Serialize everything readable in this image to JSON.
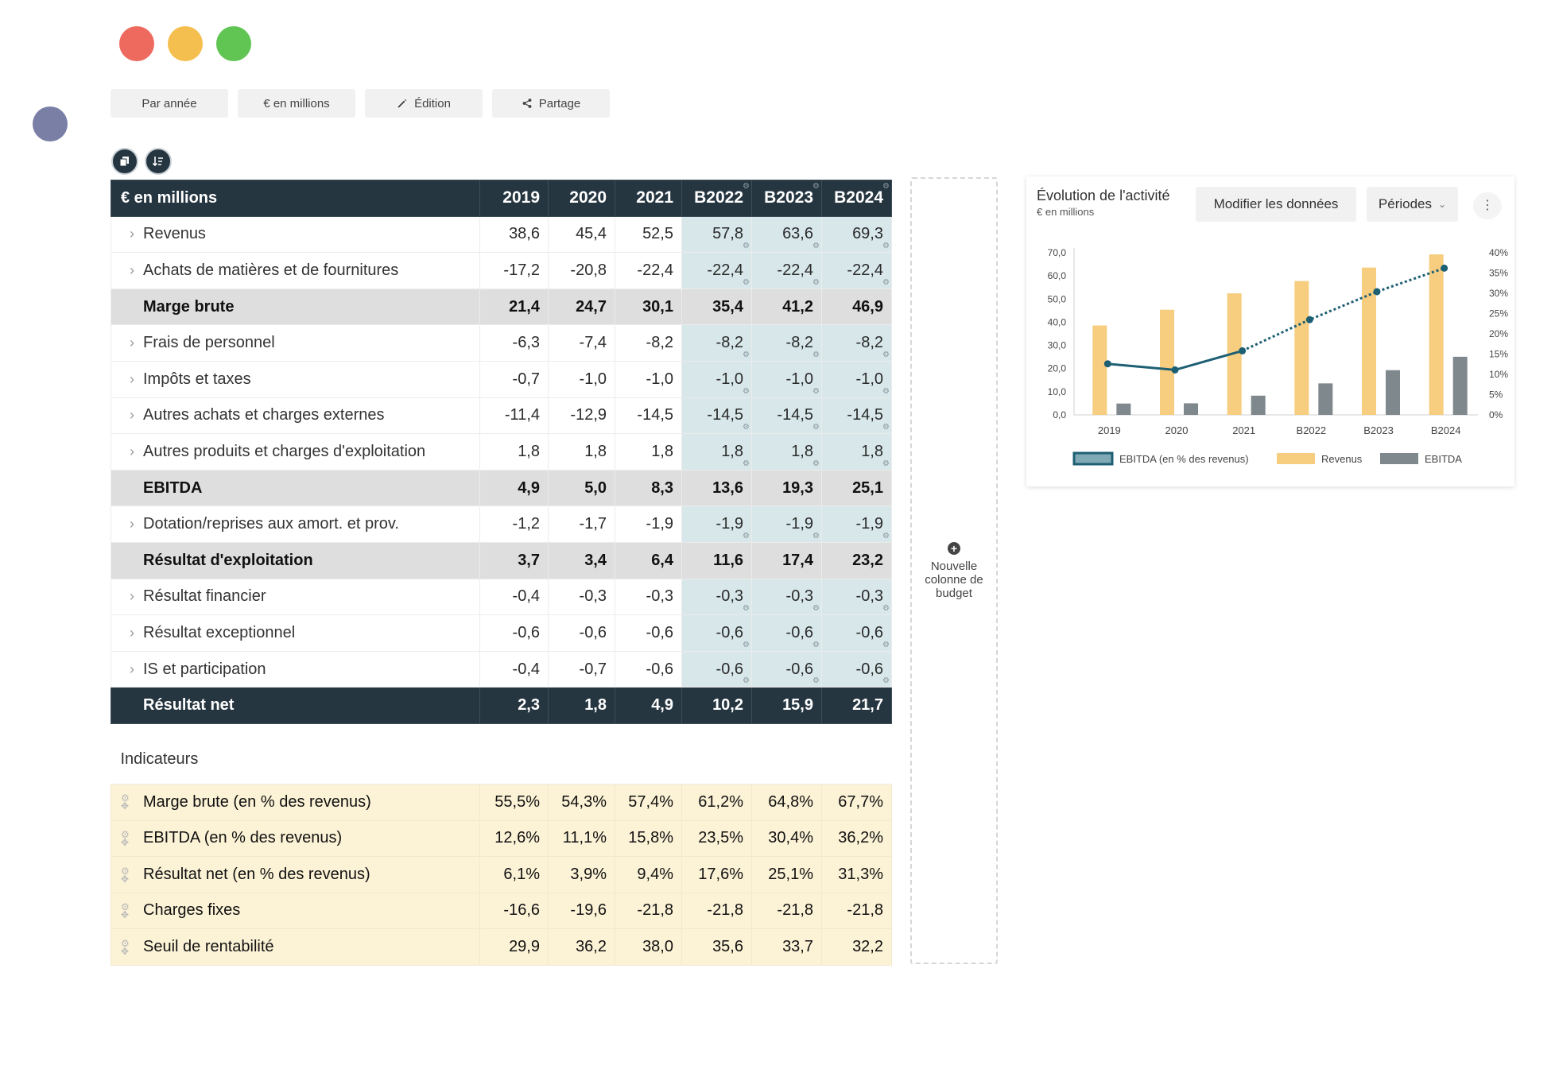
{
  "toolbar": {
    "by_year": "Par année",
    "unit": "€ en millions",
    "edit": "Édition",
    "share": "Partage"
  },
  "table": {
    "header_label": "€ en millions",
    "years": [
      "2019",
      "2020",
      "2021",
      "B2022",
      "B2023",
      "B2024"
    ],
    "rows": [
      {
        "label": "Revenus",
        "values": [
          "38,6",
          "45,4",
          "52,5",
          "57,8",
          "63,6",
          "69,3"
        ]
      },
      {
        "label": "Achats de matières et de fournitures",
        "values": [
          "-17,2",
          "-20,8",
          "-22,4",
          "-22,4",
          "-22,4",
          "-22,4"
        ]
      },
      {
        "label": "Marge brute",
        "values": [
          "21,4",
          "24,7",
          "30,1",
          "35,4",
          "41,2",
          "46,9"
        ]
      },
      {
        "label": "Frais de personnel",
        "values": [
          "-6,3",
          "-7,4",
          "-8,2",
          "-8,2",
          "-8,2",
          "-8,2"
        ]
      },
      {
        "label": "Impôts et taxes",
        "values": [
          "-0,7",
          "-1,0",
          "-1,0",
          "-1,0",
          "-1,0",
          "-1,0"
        ]
      },
      {
        "label": "Autres achats et charges externes",
        "values": [
          "-11,4",
          "-12,9",
          "-14,5",
          "-14,5",
          "-14,5",
          "-14,5"
        ]
      },
      {
        "label": "Autres produits et charges d'exploitation",
        "values": [
          "1,8",
          "1,8",
          "1,8",
          "1,8",
          "1,8",
          "1,8"
        ]
      },
      {
        "label": "EBITDA",
        "values": [
          "4,9",
          "5,0",
          "8,3",
          "13,6",
          "19,3",
          "25,1"
        ]
      },
      {
        "label": "Dotation/reprises aux amort. et prov.",
        "values": [
          "-1,2",
          "-1,7",
          "-1,9",
          "-1,9",
          "-1,9",
          "-1,9"
        ]
      },
      {
        "label": "Résultat d'exploitation",
        "values": [
          "3,7",
          "3,4",
          "6,4",
          "11,6",
          "17,4",
          "23,2"
        ]
      },
      {
        "label": "Résultat financier",
        "values": [
          "-0,4",
          "-0,3",
          "-0,3",
          "-0,3",
          "-0,3",
          "-0,3"
        ]
      },
      {
        "label": "Résultat exceptionnel",
        "values": [
          "-0,6",
          "-0,6",
          "-0,6",
          "-0,6",
          "-0,6",
          "-0,6"
        ]
      },
      {
        "label": "IS et participation",
        "values": [
          "-0,4",
          "-0,7",
          "-0,6",
          "-0,6",
          "-0,6",
          "-0,6"
        ]
      },
      {
        "label": "Résultat net",
        "values": [
          "2,3",
          "1,8",
          "4,9",
          "10,2",
          "15,9",
          "21,7"
        ]
      }
    ],
    "indicators_title": "Indicateurs",
    "indicators": [
      {
        "label": "Marge brute (en % des revenus)",
        "values": [
          "55,5%",
          "54,3%",
          "57,4%",
          "61,2%",
          "64,8%",
          "67,7%"
        ]
      },
      {
        "label": "EBITDA (en % des revenus)",
        "values": [
          "12,6%",
          "11,1%",
          "15,8%",
          "23,5%",
          "30,4%",
          "36,2%"
        ]
      },
      {
        "label": "Résultat net (en % des revenus)",
        "values": [
          "6,1%",
          "3,9%",
          "9,4%",
          "17,6%",
          "25,1%",
          "31,3%"
        ]
      },
      {
        "label": "Charges fixes",
        "values": [
          "-16,6",
          "-19,6",
          "-21,8",
          "-21,8",
          "-21,8",
          "-21,8"
        ]
      },
      {
        "label": "Seuil de rentabilité",
        "values": [
          "29,9",
          "36,2",
          "38,0",
          "35,6",
          "33,7",
          "32,2"
        ]
      }
    ]
  },
  "new_column": {
    "line1": "Nouvelle",
    "line2": "colonne de",
    "line3": "budget"
  },
  "chart_panel": {
    "title": "Évolution de l'activité",
    "subtitle": "€ en millions",
    "modify_button": "Modifier les données",
    "periods_button": "Périodes"
  },
  "colors": {
    "dark": "#263641",
    "budget_cell": "#d7e7ea",
    "indicator_row": "#fcf2d6",
    "revenus_bar": "#f7cd7f",
    "ebitda_bar": "#7e888d",
    "ebitda_pct_line": "#1d5f73"
  },
  "chart_data": {
    "type": "bar",
    "title": "Évolution de l'activité",
    "subtitle": "€ en millions",
    "categories": [
      "2019",
      "2020",
      "2021",
      "B2022",
      "B2023",
      "B2024"
    ],
    "series": [
      {
        "name": "Revenus",
        "kind": "bar",
        "axis": "left",
        "values": [
          38.6,
          45.4,
          52.5,
          57.8,
          63.6,
          69.3
        ]
      },
      {
        "name": "EBITDA",
        "kind": "bar",
        "axis": "left",
        "values": [
          4.9,
          5.0,
          8.3,
          13.6,
          19.3,
          25.1
        ]
      },
      {
        "name": "EBITDA (en % des revenus)",
        "kind": "line",
        "axis": "right",
        "values": [
          12.6,
          11.1,
          15.8,
          23.5,
          30.4,
          36.2
        ]
      }
    ],
    "ylim": [
      0,
      70
    ],
    "y_ticks": [
      "0,0",
      "10,0",
      "20,0",
      "30,0",
      "40,0",
      "50,0",
      "60,0",
      "70,0"
    ],
    "y2lim": [
      0,
      40
    ],
    "y2_ticks": [
      "0%",
      "5%",
      "10%",
      "15%",
      "20%",
      "25%",
      "30%",
      "35%",
      "40%"
    ],
    "legend": [
      "EBITDA (en % des revenus)",
      "Revenus",
      "EBITDA"
    ],
    "legend_position": "bottom"
  }
}
